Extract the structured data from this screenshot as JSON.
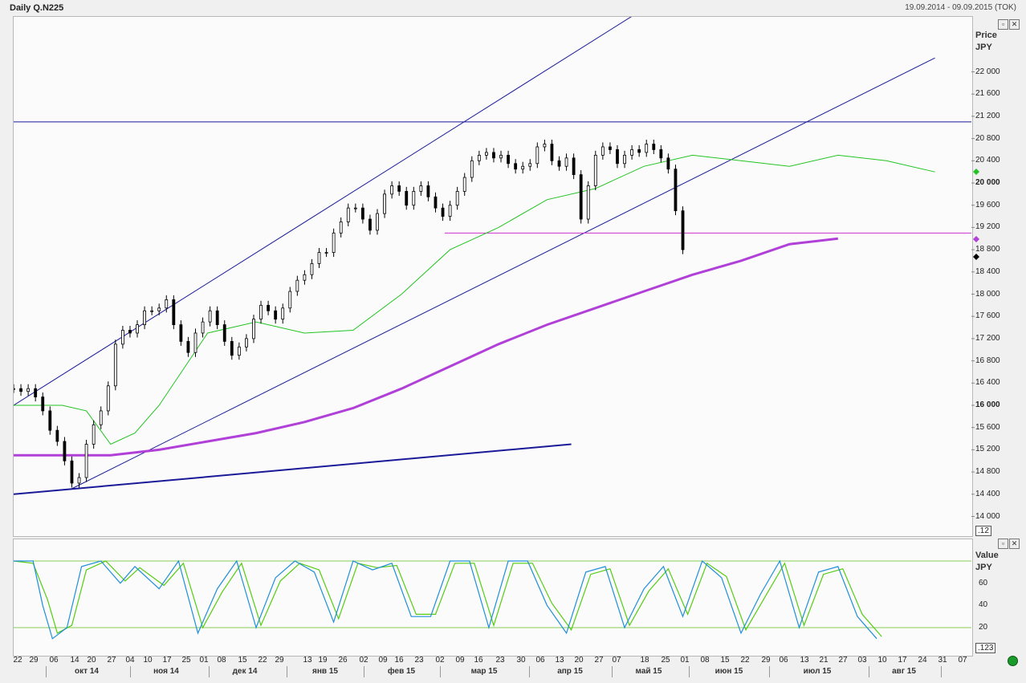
{
  "window": {
    "title": "Daily Q.N225",
    "date_range": "19.09.2014 - 09.09.2015 (TOK)"
  },
  "price_axis": {
    "header1": "Price",
    "header2": "JPY",
    "ticks": [
      "22 000",
      "21 600",
      "21 200",
      "20 800",
      "20 400",
      "20 000",
      "19 600",
      "19 200",
      "18 800",
      "18 400",
      "18 000",
      "17 600",
      "17 200",
      "16 800",
      "16 400",
      "16 000",
      "15 600",
      "15 200",
      "14 800",
      "14 400",
      "14 000"
    ],
    "bold_ticks": [
      "20 000",
      "16 000"
    ],
    "scale_box": ".12"
  },
  "osc_axis": {
    "header1": "Value",
    "header2": "JPY",
    "ticks": [
      "60",
      "40",
      "20"
    ],
    "scale_box": ".123"
  },
  "x_axis": {
    "days": [
      "22",
      "29",
      "06",
      "14",
      "20",
      "27",
      "04",
      "10",
      "17",
      "25",
      "01",
      "08",
      "15",
      "22",
      "29",
      "13",
      "19",
      "26",
      "02",
      "09",
      "16",
      "23",
      "02",
      "09",
      "16",
      "23",
      "30",
      "06",
      "13",
      "20",
      "27",
      "07",
      "18",
      "25",
      "01",
      "08",
      "15",
      "22",
      "29",
      "06",
      "13",
      "21",
      "27",
      "03",
      "10",
      "17",
      "24",
      "31",
      "07"
    ],
    "months": [
      "окт 14",
      "ноя 14",
      "дек 14",
      "янв 15",
      "фев 15",
      "мар 15",
      "апр 15",
      "май 15",
      "июн 15",
      "июл 15",
      "авг 15"
    ]
  },
  "colors": {
    "sma_fast": "#22c422",
    "sma_slow": "#b040d8",
    "channel": "#1a1a99",
    "support_line": "#cc33cc",
    "stoch_k": "#1f8fd8",
    "stoch_d": "#55cc11",
    "level_lines": "#88cc55",
    "status": "#1a9a2a"
  },
  "icons": [
    "restore-icon",
    "close-icon",
    "status-dot-icon"
  ],
  "chart_data": {
    "type": "candlestick",
    "symbol": "Q.N225",
    "ylim": [
      13800,
      22800
    ],
    "series_points": [
      [
        0,
        16300
      ],
      [
        3,
        16250
      ],
      [
        6,
        16300
      ],
      [
        9,
        16150
      ],
      [
        12,
        15900
      ],
      [
        15,
        15550
      ],
      [
        18,
        15350
      ],
      [
        21,
        15000
      ],
      [
        24,
        14600
      ],
      [
        27,
        14700
      ],
      [
        30,
        15300
      ],
      [
        33,
        15650
      ],
      [
        36,
        15900
      ],
      [
        39,
        16350
      ],
      [
        42,
        17100
      ],
      [
        45,
        17350
      ],
      [
        48,
        17300
      ],
      [
        51,
        17450
      ],
      [
        54,
        17700
      ],
      [
        57,
        17700
      ],
      [
        60,
        17750
      ],
      [
        63,
        17900
      ],
      [
        66,
        17450
      ],
      [
        69,
        17150
      ],
      [
        72,
        16950
      ],
      [
        75,
        17300
      ],
      [
        78,
        17500
      ],
      [
        81,
        17700
      ],
      [
        84,
        17450
      ],
      [
        87,
        17150
      ],
      [
        90,
        16900
      ],
      [
        93,
        17050
      ],
      [
        96,
        17200
      ],
      [
        99,
        17550
      ],
      [
        102,
        17800
      ],
      [
        105,
        17700
      ],
      [
        108,
        17550
      ],
      [
        111,
        17750
      ],
      [
        114,
        18050
      ],
      [
        117,
        18250
      ],
      [
        120,
        18350
      ],
      [
        123,
        18550
      ],
      [
        126,
        18750
      ],
      [
        129,
        18750
      ],
      [
        132,
        19100
      ],
      [
        135,
        19300
      ],
      [
        138,
        19550
      ],
      [
        141,
        19550
      ],
      [
        144,
        19350
      ],
      [
        147,
        19150
      ],
      [
        150,
        19450
      ],
      [
        153,
        19800
      ],
      [
        156,
        19950
      ],
      [
        159,
        19850
      ],
      [
        162,
        19600
      ],
      [
        165,
        19850
      ],
      [
        168,
        19950
      ],
      [
        171,
        19750
      ],
      [
        174,
        19550
      ],
      [
        177,
        19400
      ],
      [
        180,
        19600
      ],
      [
        183,
        19850
      ],
      [
        186,
        20100
      ],
      [
        189,
        20400
      ],
      [
        192,
        20500
      ],
      [
        195,
        20550
      ],
      [
        198,
        20450
      ],
      [
        201,
        20500
      ],
      [
        204,
        20350
      ],
      [
        207,
        20250
      ],
      [
        210,
        20300
      ],
      [
        213,
        20350
      ],
      [
        216,
        20650
      ],
      [
        219,
        20700
      ],
      [
        222,
        20400
      ],
      [
        225,
        20300
      ],
      [
        228,
        20450
      ],
      [
        231,
        20150
      ],
      [
        234,
        19350
      ],
      [
        237,
        19950
      ],
      [
        240,
        20500
      ],
      [
        243,
        20650
      ],
      [
        246,
        20600
      ],
      [
        249,
        20350
      ],
      [
        252,
        20500
      ],
      [
        255,
        20600
      ],
      [
        258,
        20550
      ],
      [
        261,
        20700
      ],
      [
        264,
        20600
      ],
      [
        267,
        20450
      ],
      [
        270,
        20250
      ],
      [
        273,
        19500
      ],
      [
        276,
        18800
      ]
    ],
    "sma_fast": [
      [
        0,
        16000
      ],
      [
        20,
        16000
      ],
      [
        30,
        15900
      ],
      [
        40,
        15300
      ],
      [
        50,
        15500
      ],
      [
        60,
        16000
      ],
      [
        80,
        17300
      ],
      [
        100,
        17500
      ],
      [
        120,
        17300
      ],
      [
        140,
        17350
      ],
      [
        160,
        18000
      ],
      [
        180,
        18800
      ],
      [
        200,
        19200
      ],
      [
        220,
        19700
      ],
      [
        240,
        19900
      ],
      [
        260,
        20300
      ],
      [
        280,
        20500
      ],
      [
        300,
        20400
      ],
      [
        320,
        20300
      ],
      [
        340,
        20500
      ],
      [
        360,
        20400
      ],
      [
        380,
        20200
      ]
    ],
    "sma_slow": [
      [
        0,
        15100
      ],
      [
        20,
        15100
      ],
      [
        40,
        15100
      ],
      [
        60,
        15200
      ],
      [
        80,
        15350
      ],
      [
        100,
        15500
      ],
      [
        120,
        15700
      ],
      [
        140,
        15950
      ],
      [
        160,
        16300
      ],
      [
        180,
        16700
      ],
      [
        200,
        17100
      ],
      [
        220,
        17450
      ],
      [
        240,
        17750
      ],
      [
        260,
        18050
      ],
      [
        280,
        18350
      ],
      [
        300,
        18600
      ],
      [
        320,
        18900
      ],
      [
        340,
        19000
      ]
    ],
    "lines": [
      {
        "name": "channel-upper",
        "from": [
          0,
          16000
        ],
        "to": [
          255,
          23000
        ]
      },
      {
        "name": "channel-lower",
        "from": [
          24,
          14500
        ],
        "to": [
          380,
          22250
        ]
      },
      {
        "name": "horizontal-resistance",
        "y": 21100
      },
      {
        "name": "support-line",
        "y": 19100
      },
      {
        "name": "long-trend",
        "from": [
          0,
          14400
        ],
        "to": [
          230,
          15300
        ]
      }
    ],
    "oscillator": {
      "type": "line",
      "ylim": [
        -5,
        100
      ],
      "levels": [
        80,
        20
      ],
      "k": [
        [
          0,
          80
        ],
        [
          8,
          80
        ],
        [
          12,
          40
        ],
        [
          16,
          10
        ],
        [
          22,
          20
        ],
        [
          28,
          75
        ],
        [
          36,
          80
        ],
        [
          44,
          60
        ],
        [
          50,
          75
        ],
        [
          60,
          55
        ],
        [
          68,
          80
        ],
        [
          76,
          15
        ],
        [
          84,
          55
        ],
        [
          92,
          80
        ],
        [
          100,
          20
        ],
        [
          108,
          65
        ],
        [
          116,
          80
        ],
        [
          124,
          70
        ],
        [
          132,
          25
        ],
        [
          140,
          80
        ],
        [
          148,
          72
        ],
        [
          156,
          78
        ],
        [
          164,
          30
        ],
        [
          172,
          30
        ],
        [
          180,
          80
        ],
        [
          188,
          80
        ],
        [
          196,
          20
        ],
        [
          204,
          80
        ],
        [
          212,
          80
        ],
        [
          220,
          40
        ],
        [
          228,
          15
        ],
        [
          236,
          70
        ],
        [
          244,
          75
        ],
        [
          252,
          20
        ],
        [
          260,
          55
        ],
        [
          268,
          75
        ],
        [
          276,
          30
        ],
        [
          284,
          80
        ],
        [
          292,
          65
        ],
        [
          300,
          15
        ],
        [
          308,
          50
        ],
        [
          316,
          80
        ],
        [
          324,
          20
        ],
        [
          332,
          70
        ],
        [
          340,
          75
        ],
        [
          348,
          30
        ],
        [
          356,
          10
        ]
      ],
      "d": [
        [
          0,
          80
        ],
        [
          8,
          78
        ],
        [
          14,
          45
        ],
        [
          18,
          15
        ],
        [
          24,
          22
        ],
        [
          30,
          72
        ],
        [
          38,
          80
        ],
        [
          46,
          62
        ],
        [
          52,
          74
        ],
        [
          62,
          58
        ],
        [
          70,
          78
        ],
        [
          78,
          20
        ],
        [
          86,
          52
        ],
        [
          94,
          78
        ],
        [
          102,
          22
        ],
        [
          110,
          62
        ],
        [
          118,
          78
        ],
        [
          126,
          72
        ],
        [
          134,
          28
        ],
        [
          142,
          78
        ],
        [
          150,
          74
        ],
        [
          158,
          76
        ],
        [
          166,
          32
        ],
        [
          174,
          32
        ],
        [
          182,
          78
        ],
        [
          190,
          78
        ],
        [
          198,
          22
        ],
        [
          206,
          78
        ],
        [
          214,
          78
        ],
        [
          222,
          42
        ],
        [
          230,
          18
        ],
        [
          238,
          68
        ],
        [
          246,
          73
        ],
        [
          254,
          22
        ],
        [
          262,
          53
        ],
        [
          270,
          73
        ],
        [
          278,
          32
        ],
        [
          286,
          78
        ],
        [
          294,
          66
        ],
        [
          302,
          18
        ],
        [
          310,
          48
        ],
        [
          318,
          78
        ],
        [
          326,
          22
        ],
        [
          334,
          68
        ],
        [
          342,
          73
        ],
        [
          350,
          32
        ],
        [
          358,
          12
        ]
      ]
    }
  }
}
